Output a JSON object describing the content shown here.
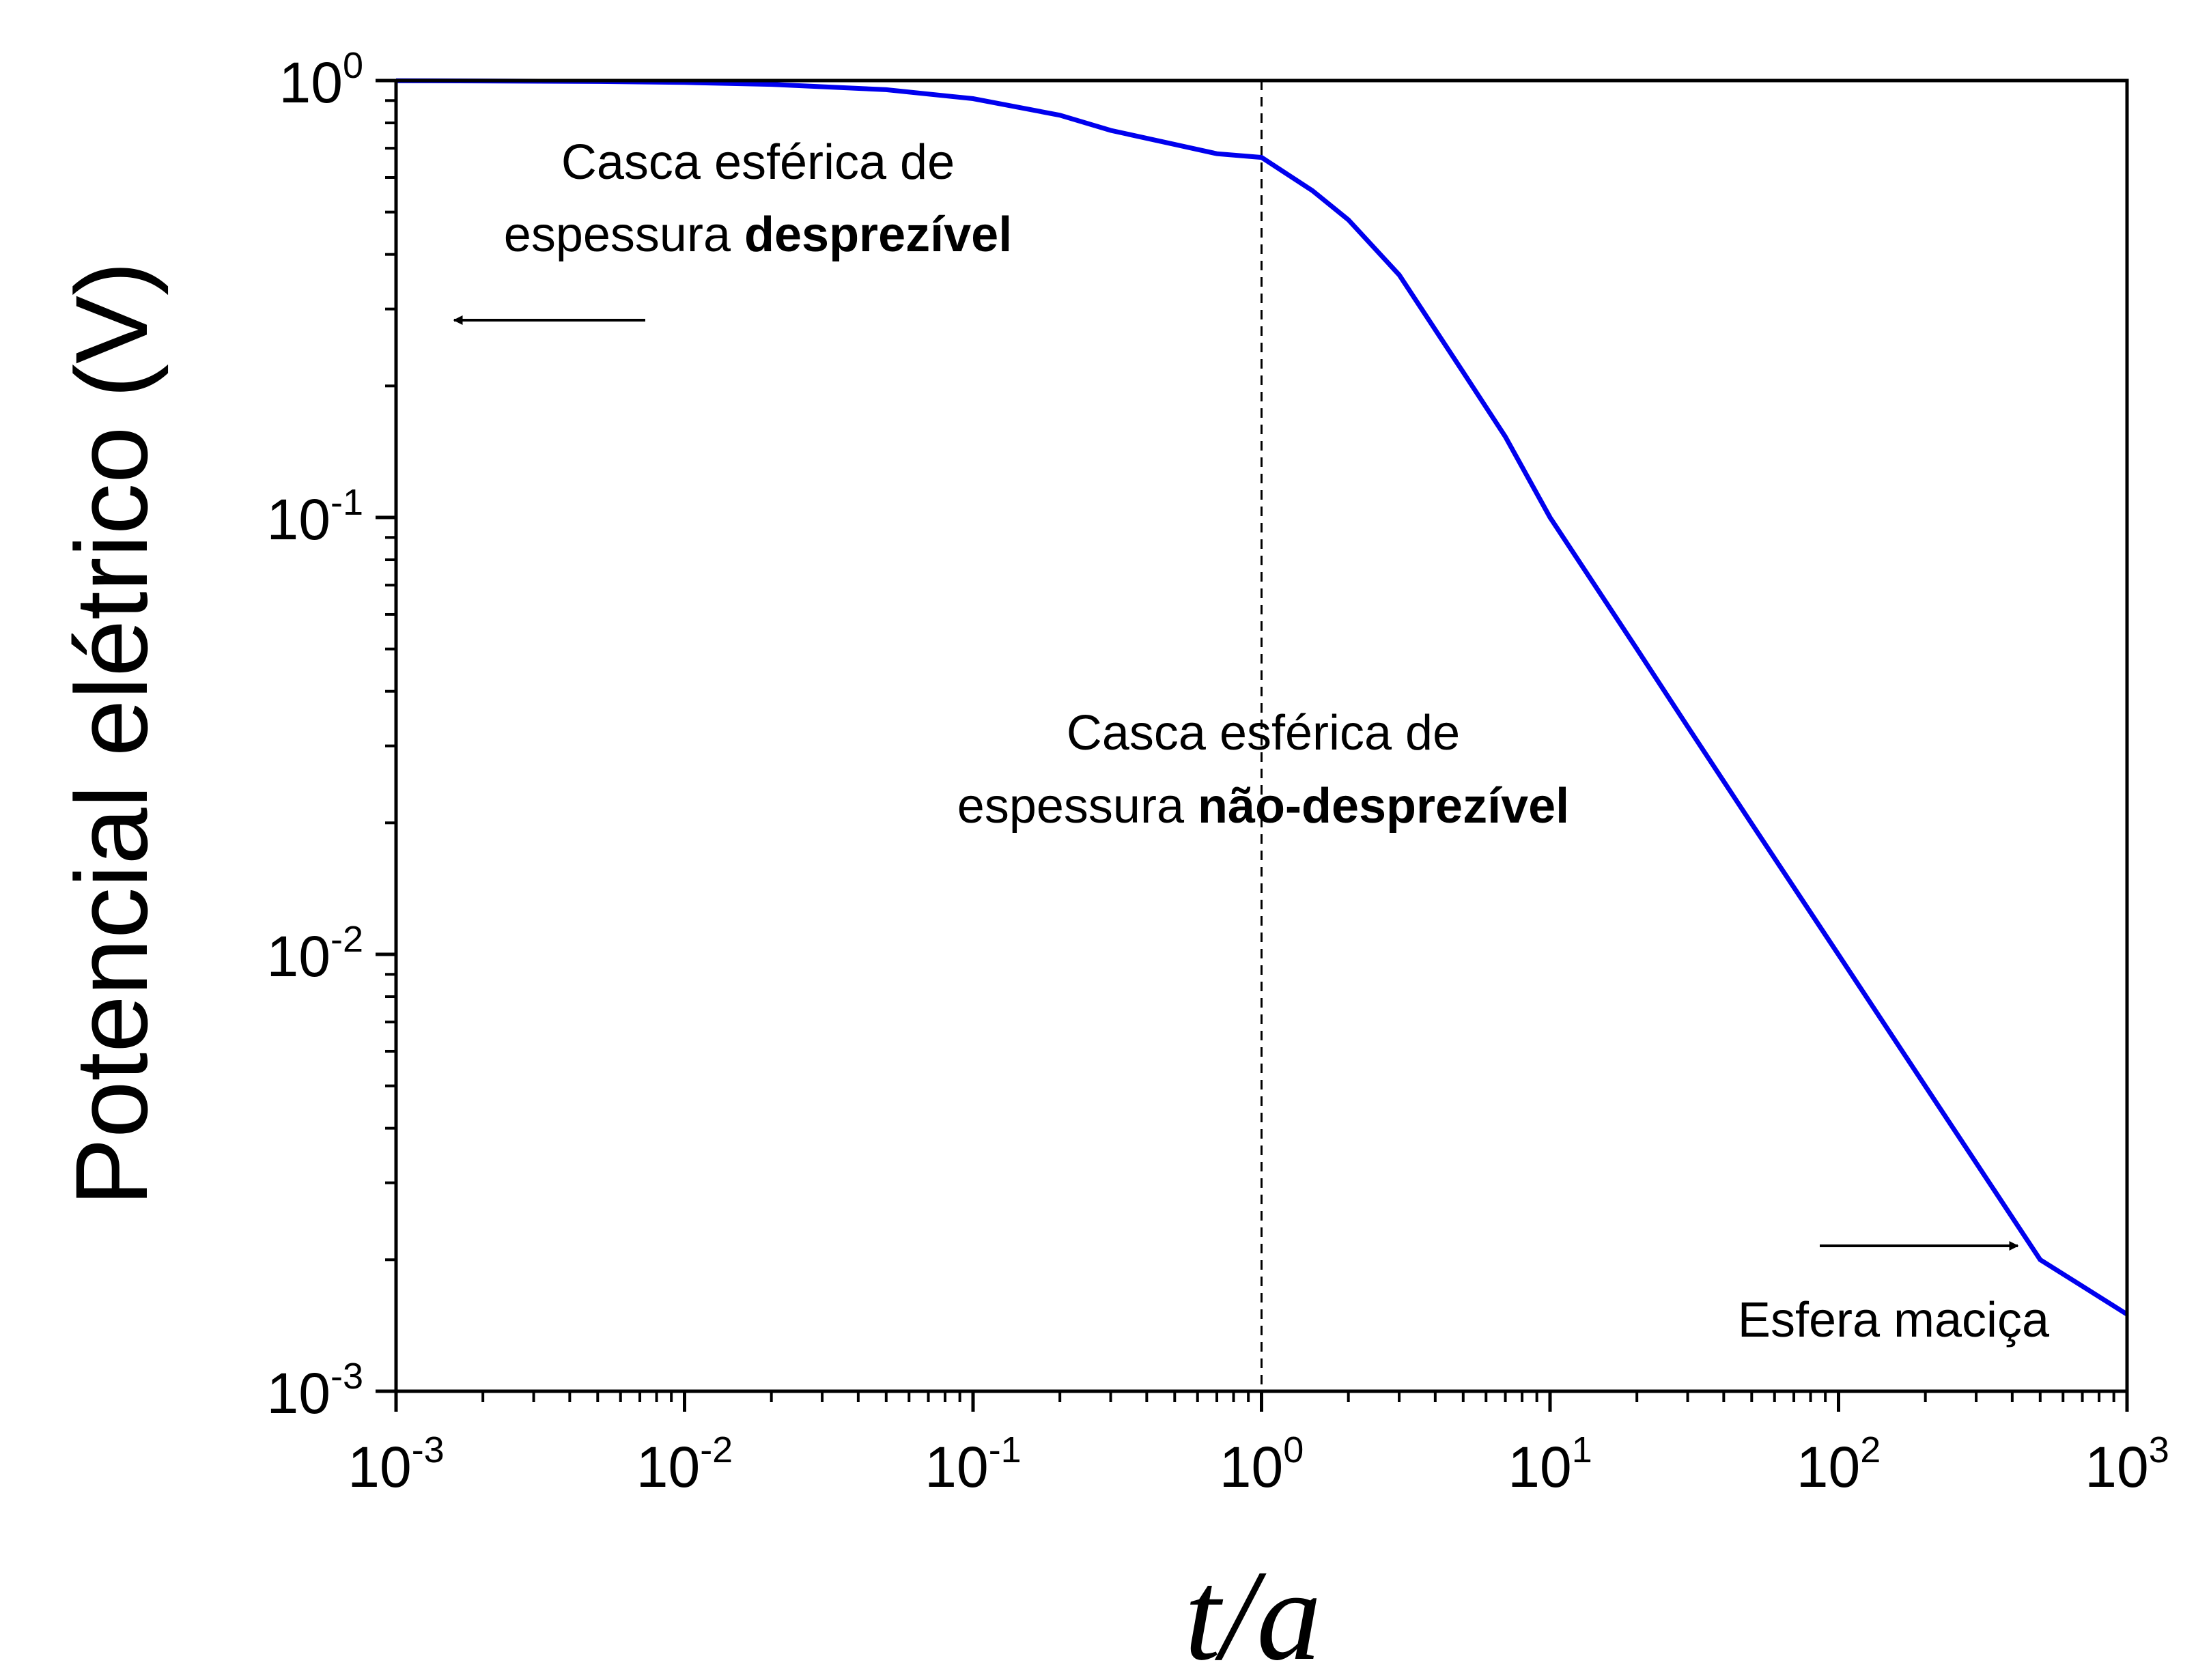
{
  "chart_data": {
    "type": "line",
    "title": "",
    "xlabel": "t/a",
    "ylabel": "Potencial elétrico (V)",
    "x_scale": "log",
    "y_scale": "log",
    "xlim": [
      0.001,
      1000
    ],
    "ylim": [
      0.001,
      1
    ],
    "x_tick_labels": [
      "10-3",
      "10-2",
      "10-1",
      "100",
      "101",
      "102",
      "103"
    ],
    "y_tick_labels": [
      "100",
      "10-1",
      "10-2",
      "10-3"
    ],
    "grid": false,
    "legend": "none",
    "series": [
      {
        "color": "#0000ee",
        "x": [
          0.001,
          0.002,
          0.005,
          0.01,
          0.02,
          0.05,
          0.1,
          0.2,
          0.3,
          0.5,
          0.7,
          1,
          1.5,
          2,
          3,
          5,
          7,
          10,
          20,
          30,
          50,
          100,
          200,
          300,
          500,
          1000
        ],
        "y": [
          0.999,
          0.998,
          0.995,
          0.99,
          0.98,
          0.953,
          0.909,
          0.833,
          0.769,
          0.714,
          0.68,
          0.667,
          0.56,
          0.48,
          0.359,
          0.215,
          0.153,
          0.1,
          0.05,
          0.0332,
          0.0199,
          0.00998,
          0.00499,
          0.00333,
          0.002,
          0.0015
        ]
      }
    ],
    "reference_line": {
      "x": 1,
      "style": "dashed",
      "color": "#000000"
    },
    "annotations": [
      {
        "id": "left",
        "line1": "Casca esférica de",
        "line2_prefix": "espessura ",
        "line2_bold": "desprezível",
        "arrow": "left"
      },
      {
        "id": "center",
        "line1": "Casca esférica de",
        "line2_prefix": "espessura ",
        "line2_bold": "não-desprezível"
      },
      {
        "id": "right",
        "line1": "Esfera maciça",
        "arrow": "right"
      }
    ]
  }
}
